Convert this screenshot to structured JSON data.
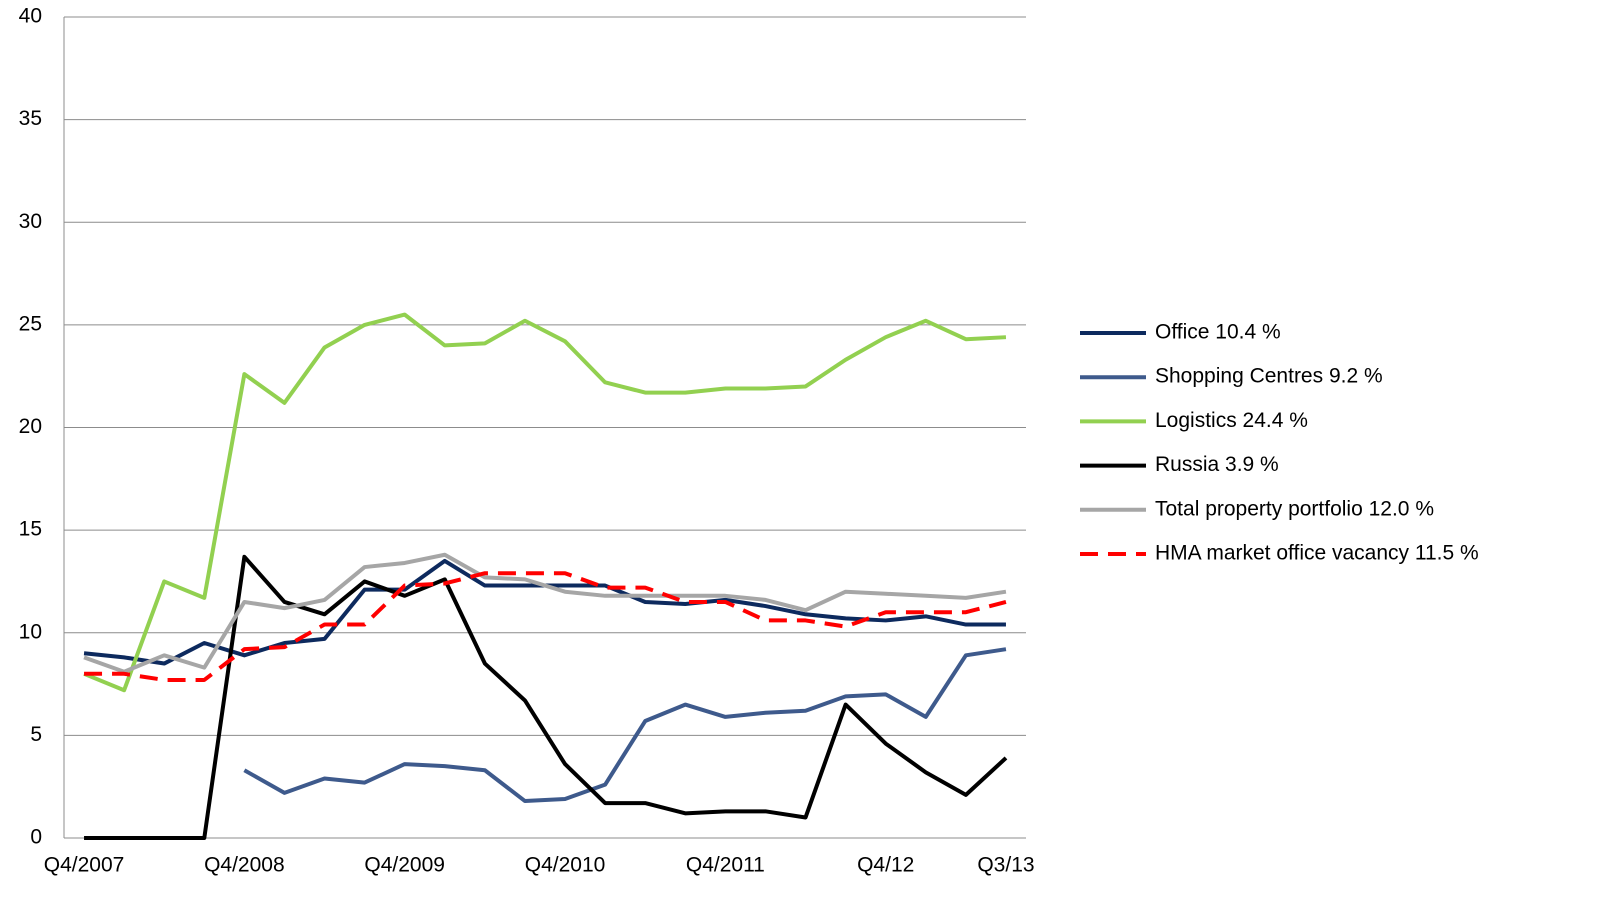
{
  "chart_data": {
    "type": "line",
    "categories": [
      "Q4/2007",
      null,
      null,
      null,
      "Q4/2008",
      null,
      null,
      null,
      "Q4/2009",
      null,
      null,
      null,
      "Q4/2010",
      null,
      null,
      null,
      "Q4/2011",
      null,
      null,
      null,
      "Q4/12",
      null,
      null,
      "Q3/13"
    ],
    "series": [
      {
        "name": "Office 10.4 %",
        "color": "#0d2a5e",
        "values": [
          9.0,
          8.8,
          8.5,
          9.5,
          8.9,
          9.5,
          9.7,
          12.1,
          12.1,
          13.5,
          12.3,
          12.3,
          12.3,
          12.3,
          11.5,
          11.4,
          11.6,
          11.3,
          10.9,
          10.7,
          10.6,
          10.8,
          10.4,
          10.4
        ]
      },
      {
        "name": "Shopping Centres 9.2 %",
        "color": "#3e5a8c",
        "values": [
          null,
          null,
          null,
          null,
          3.3,
          2.2,
          2.9,
          2.7,
          3.6,
          3.5,
          3.3,
          1.8,
          1.9,
          2.6,
          5.7,
          6.5,
          5.9,
          6.1,
          6.2,
          6.9,
          7.0,
          5.9,
          8.9,
          9.2
        ]
      },
      {
        "name": "Logistics 24.4 %",
        "color": "#92d050",
        "values": [
          8.0,
          7.2,
          12.5,
          11.7,
          22.6,
          21.2,
          23.9,
          25.0,
          25.5,
          24.0,
          24.1,
          25.2,
          24.2,
          22.2,
          21.7,
          21.7,
          21.9,
          21.9,
          22.0,
          23.3,
          24.4,
          25.2,
          24.3,
          24.4
        ]
      },
      {
        "name": "Russia 3.9 %",
        "color": "#000000",
        "values": [
          0,
          0,
          0,
          0,
          13.7,
          11.5,
          10.9,
          12.5,
          11.8,
          12.6,
          8.5,
          6.7,
          3.6,
          1.7,
          1.7,
          1.2,
          1.3,
          1.3,
          1.0,
          6.5,
          4.6,
          3.2,
          2.1,
          3.9
        ]
      },
      {
        "name": "Total property portfolio 12.0 %",
        "color": "#a6a6a6",
        "values": [
          8.8,
          8.1,
          8.9,
          8.3,
          11.5,
          11.2,
          11.6,
          13.2,
          13.4,
          13.8,
          12.7,
          12.6,
          12.0,
          11.8,
          11.8,
          11.8,
          11.8,
          11.6,
          11.1,
          12.0,
          11.9,
          11.8,
          11.7,
          12.0
        ]
      },
      {
        "name": "HMA market office vacancy 11.5 %",
        "color": "#ff0000",
        "dashed": true,
        "values": [
          8.0,
          8.0,
          7.7,
          7.7,
          9.2,
          9.3,
          10.4,
          10.4,
          12.3,
          12.4,
          12.9,
          12.9,
          12.9,
          12.2,
          12.2,
          11.5,
          11.5,
          10.6,
          10.6,
          10.3,
          11.0,
          11.0,
          11.0,
          11.5
        ]
      }
    ],
    "ylim": [
      0,
      40
    ],
    "yticks": [
      0,
      5,
      10,
      15,
      20,
      25,
      30,
      35,
      40
    ],
    "grid": true,
    "legend": "right"
  }
}
